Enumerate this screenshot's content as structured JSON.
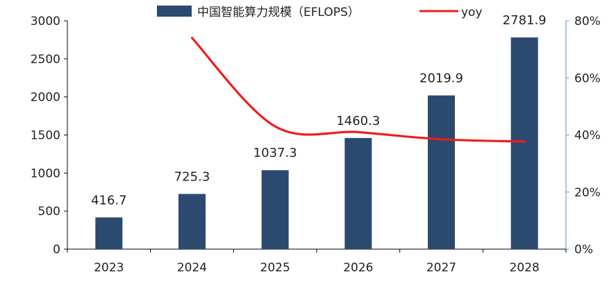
{
  "chart_data": {
    "type": "bar",
    "categories": [
      "2023",
      "2024",
      "2025",
      "2026",
      "2027",
      "2028"
    ],
    "series": [
      {
        "name": "中国智能算力规模（EFLOPS）",
        "type": "bar",
        "axis": "left",
        "color": "#2c4a6f",
        "values": [
          416.7,
          725.3,
          1037.3,
          1460.3,
          2019.9,
          2781.9
        ],
        "data_labels": [
          "416.7",
          "725.3",
          "1037.3",
          "1460.3",
          "2019.9",
          "2781.9"
        ]
      },
      {
        "name": "yoy",
        "type": "line",
        "axis": "right",
        "color": "#ee1c1c",
        "values": [
          null,
          0.74,
          0.43,
          0.41,
          0.385,
          0.377
        ]
      }
    ],
    "y_left": {
      "min": 0,
      "max": 3000,
      "ticks": [
        "0",
        "500",
        "1000",
        "1500",
        "2000",
        "2500",
        "3000"
      ]
    },
    "y_right": {
      "min": 0,
      "max": 0.8,
      "ticks": [
        "0%",
        "20%",
        "40%",
        "60%",
        "80%"
      ],
      "axis_color": "#6f9fc9"
    },
    "legend_position": "top-center",
    "grid": false
  }
}
